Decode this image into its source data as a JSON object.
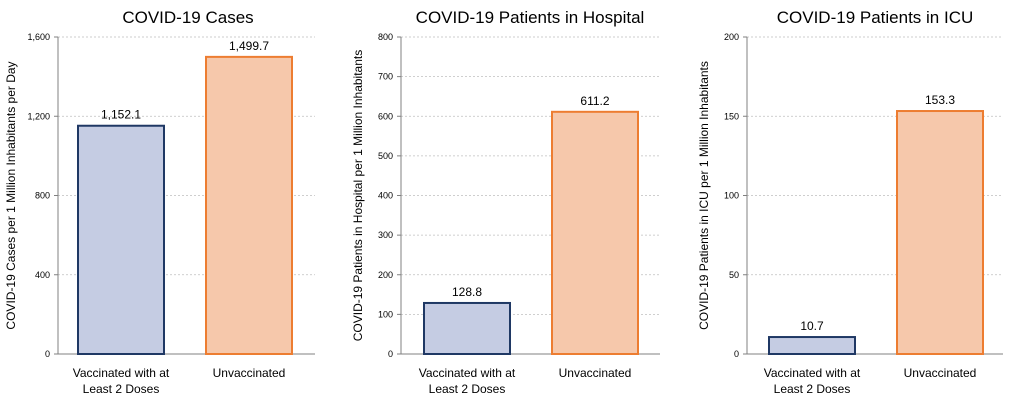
{
  "chart_data": [
    {
      "type": "bar",
      "title": "COVID-19 Cases",
      "ylabel": "COVID-19 Cases per 1 Million Inhabitants per Day",
      "xlabel": "",
      "categories": [
        "Vaccinated with at Least 2 Doses",
        "Unvaccinated"
      ],
      "category_lines": [
        [
          "Vaccinated with at",
          "Least 2 Doses"
        ],
        [
          "Unvaccinated"
        ]
      ],
      "values": [
        1152.1,
        1499.7
      ],
      "value_labels": [
        "1,152.1",
        "1,499.7"
      ],
      "ylim": [
        0,
        1600
      ],
      "yticks": [
        0,
        400,
        800,
        1200,
        1600
      ],
      "ytick_labels": [
        "0",
        "400",
        "800",
        "1,200",
        "1,600"
      ],
      "grid": true
    },
    {
      "type": "bar",
      "title": "COVID-19 Patients in Hospital",
      "ylabel": "COVID-19 Patients in Hospital per 1 Million Inhabitants",
      "xlabel": "",
      "categories": [
        "Vaccinated with at Least 2 Doses",
        "Unvaccinated"
      ],
      "category_lines": [
        [
          "Vaccinated with at",
          "Least 2 Doses"
        ],
        [
          "Unvaccinated"
        ]
      ],
      "values": [
        128.8,
        611.2
      ],
      "value_labels": [
        "128.8",
        "611.2"
      ],
      "ylim": [
        0,
        800
      ],
      "yticks": [
        0,
        100,
        200,
        300,
        400,
        500,
        600,
        700,
        800
      ],
      "ytick_labels": [
        "0",
        "100",
        "200",
        "300",
        "400",
        "500",
        "600",
        "700",
        "800"
      ],
      "grid": true
    },
    {
      "type": "bar",
      "title": "COVID-19 Patients in ICU",
      "ylabel": "COVID-19 Patients in ICU  per 1 Million Inhabitants",
      "xlabel": "",
      "categories": [
        "Vaccinated with at Least 2 Doses",
        "Unvaccinated"
      ],
      "category_lines": [
        [
          "Vaccinated with at",
          "Least 2 Doses"
        ],
        [
          "Unvaccinated"
        ]
      ],
      "values": [
        10.7,
        153.3
      ],
      "value_labels": [
        "10.7",
        "153.3"
      ],
      "ylim": [
        0,
        200
      ],
      "yticks": [
        0,
        50,
        100,
        150,
        200
      ],
      "ytick_labels": [
        "0",
        "50",
        "100",
        "150",
        "200"
      ],
      "grid": true
    }
  ],
  "colors": {
    "vaccinated_fill": "#c5cce3",
    "vaccinated_stroke": "#1f3864",
    "unvaccinated_fill": "#f6c8ab",
    "unvaccinated_stroke": "#ed7d31",
    "grid": "#bfbfbf",
    "axis": "#808080"
  }
}
